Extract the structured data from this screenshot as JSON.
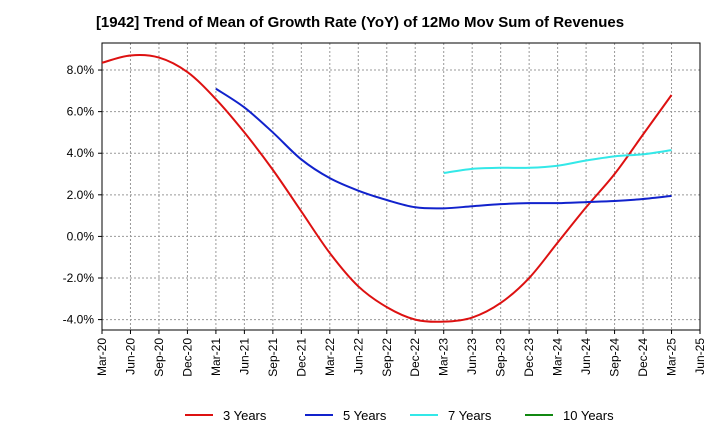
{
  "title": "[1942]  Trend of Mean of Growth Rate (YoY) of 12Mo Mov Sum of Revenues",
  "chart_data": {
    "type": "line",
    "title": "[1942]  Trend of Mean of Growth Rate (YoY) of 12Mo Mov Sum of Revenues",
    "xlabel": "",
    "ylabel": "",
    "x_tick_labels": [
      "Mar-20",
      "Jun-20",
      "Sep-20",
      "Dec-20",
      "Mar-21",
      "Jun-21",
      "Sep-21",
      "Dec-21",
      "Mar-22",
      "Jun-22",
      "Sep-22",
      "Dec-22",
      "Mar-23",
      "Jun-23",
      "Sep-23",
      "Dec-23",
      "Mar-24",
      "Jun-24",
      "Sep-24",
      "Dec-24",
      "Mar-25",
      "Jun-25"
    ],
    "y_tick_labels": [
      "-4.0%",
      "-2.0%",
      "0.0%",
      "2.0%",
      "4.0%",
      "6.0%",
      "8.0%"
    ],
    "y_ticks": [
      -4,
      -2,
      0,
      2,
      4,
      6,
      8
    ],
    "ylim": [
      -4.5,
      9.3
    ],
    "grid": true,
    "legend_position": "bottom",
    "series": [
      {
        "name": "3 Years",
        "color": "#dd1111",
        "start_index": 0,
        "values": [
          8.35,
          8.7,
          8.6,
          7.9,
          6.6,
          5.0,
          3.2,
          1.2,
          -0.8,
          -2.4,
          -3.4,
          -4.0,
          -4.1,
          -3.9,
          -3.2,
          -2.0,
          -0.3,
          1.4,
          3.0,
          4.9,
          6.8
        ]
      },
      {
        "name": "5 Years",
        "color": "#1122cc",
        "start_index": 4,
        "values": [
          7.1,
          6.2,
          5.0,
          3.7,
          2.8,
          2.2,
          1.75,
          1.4,
          1.35,
          1.45,
          1.55,
          1.6,
          1.6,
          1.65,
          1.7,
          1.8,
          1.95
        ]
      },
      {
        "name": "7 Years",
        "color": "#33e8e8",
        "start_index": 12,
        "values": [
          3.05,
          3.25,
          3.3,
          3.3,
          3.4,
          3.65,
          3.85,
          3.95,
          4.15
        ]
      },
      {
        "name": "10 Years",
        "color": "#118811",
        "start_index": 0,
        "values": []
      }
    ]
  }
}
